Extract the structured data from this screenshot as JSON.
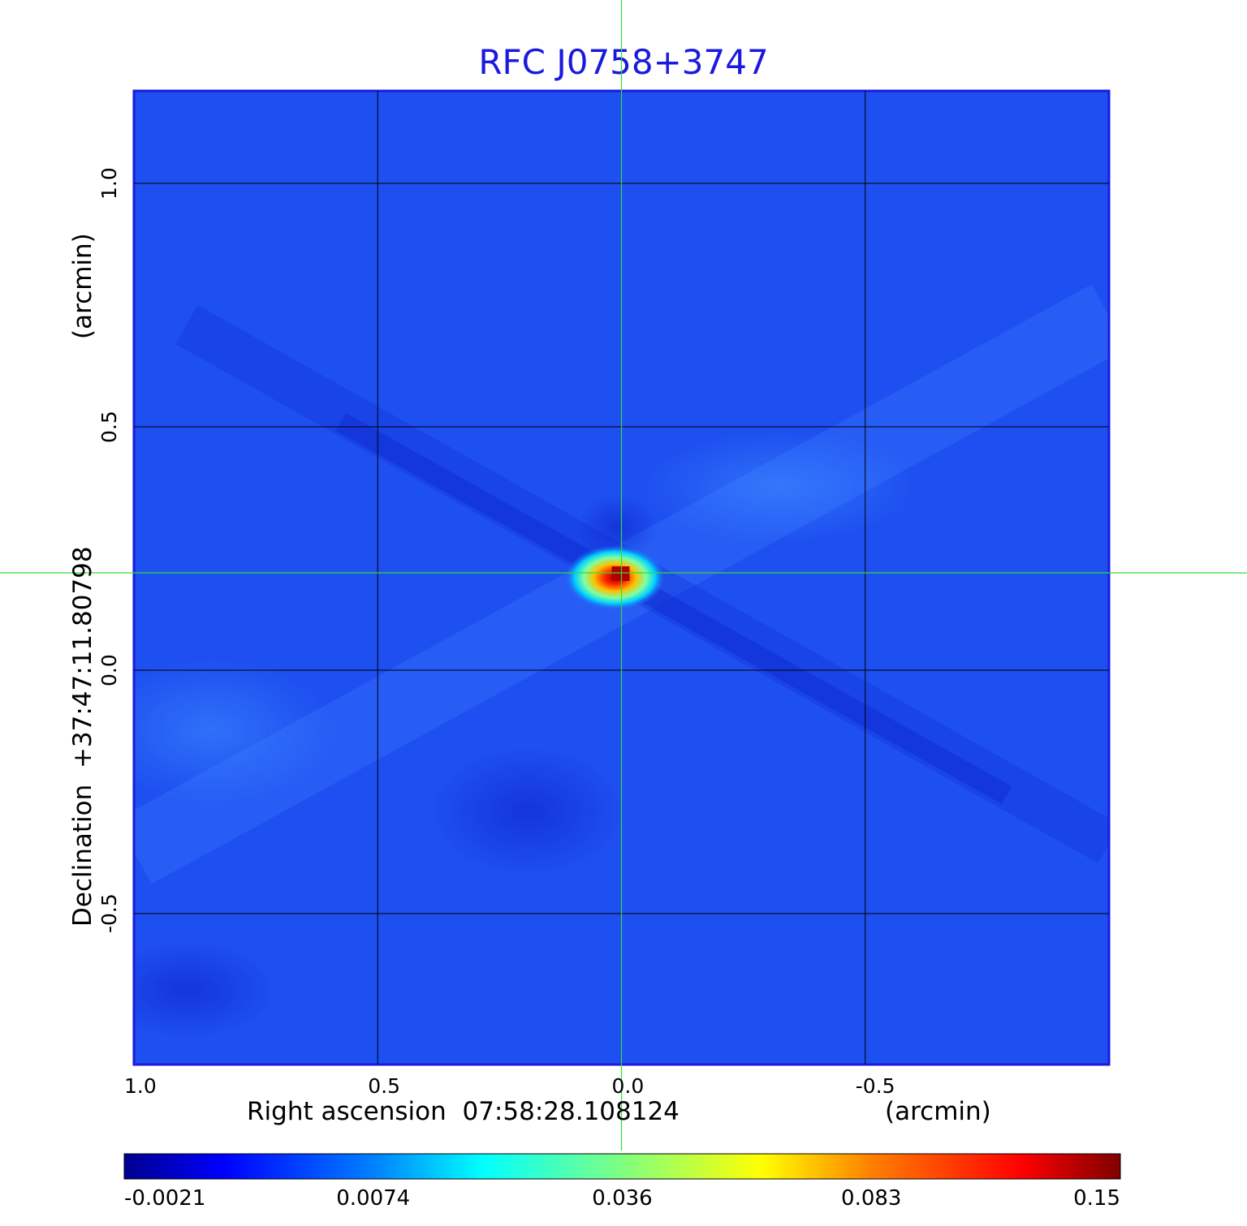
{
  "chart_data": {
    "type": "heatmap",
    "title": "RFC J0758+3747",
    "xlabel_left": "Right ascension  07:58:28.108124",
    "xlabel_right": "(arcmin)",
    "ylabel_left": "Declination  +37:47:11.80798",
    "ylabel_right": "(arcmin)",
    "x_ticks": [
      {
        "value": 1.0,
        "label": "1.0"
      },
      {
        "value": 0.5,
        "label": "0.5"
      },
      {
        "value": 0.0,
        "label": "0.0"
      },
      {
        "value": -0.5,
        "label": "-0.5"
      }
    ],
    "y_ticks": [
      {
        "value": 1.0,
        "label": "1.0"
      },
      {
        "value": 0.5,
        "label": "0.5"
      },
      {
        "value": 0.0,
        "label": "0.0"
      },
      {
        "value": -0.5,
        "label": "-0.5"
      }
    ],
    "xlim": [
      1.0,
      -1.0
    ],
    "ylim": [
      -0.81,
      1.19
    ],
    "grid": true,
    "crosshair": {
      "x": 0.0,
      "y": 0.2
    },
    "peak": {
      "x": 0.0,
      "y": 0.2
    },
    "colorbar": {
      "ticks": [
        {
          "value": -0.0021,
          "label": "-0.0021"
        },
        {
          "value": 0.0074,
          "label": "0.0074"
        },
        {
          "value": 0.036,
          "label": "0.036"
        },
        {
          "value": 0.083,
          "label": "0.083"
        },
        {
          "value": 0.15,
          "label": "0.15"
        }
      ]
    },
    "colors": {
      "background": "#1e4ff0",
      "frame": "#1a1adf",
      "crosshair": "#33dd33",
      "grid": "#000000"
    }
  }
}
